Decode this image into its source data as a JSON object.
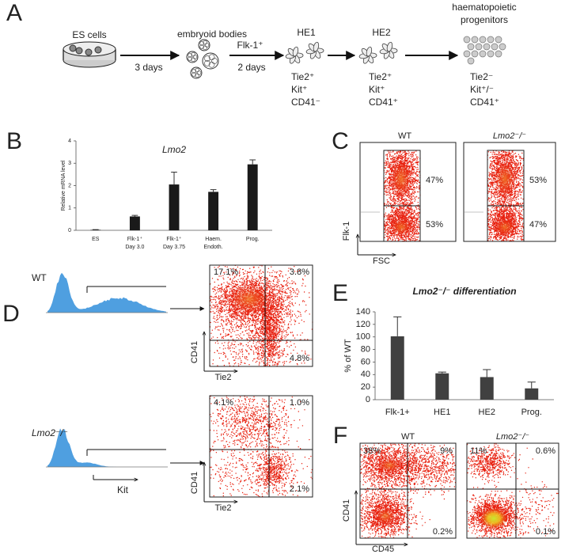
{
  "panel_labels": [
    "A",
    "B",
    "C",
    "D",
    "E",
    "F"
  ],
  "panel_a": {
    "es_cells": "ES cells",
    "arrow1": "3 days",
    "embryoid_bodies": "embryoid bodies",
    "arrow2_top": "Flk-1⁺",
    "arrow2_bottom": "2 days",
    "he1": {
      "label": "HE1",
      "markers": [
        "Tie2⁺",
        "Kit⁺",
        "CD41⁻"
      ]
    },
    "he2": {
      "label": "HE2",
      "markers": [
        "Tie2⁺",
        "Kit⁺",
        "CD41⁺"
      ]
    },
    "progenitors": {
      "label": [
        "haematopoietic",
        "progenitors"
      ],
      "markers": [
        "Tie2⁻",
        "Kit⁺/⁻",
        "CD41⁺"
      ]
    }
  },
  "chart_data": [
    {
      "type": "bar",
      "title": "Lmo2",
      "y_label": "Relative mRNA level",
      "categories": [
        [
          "ES"
        ],
        [
          "Flk-1⁺",
          "Day 3.0"
        ],
        [
          "Flk-1⁺",
          "Day 3.75"
        ],
        [
          "Haem.",
          "Endoth."
        ],
        [
          "Prog."
        ]
      ],
      "values": [
        0.02,
        0.62,
        2.05,
        1.72,
        2.95
      ],
      "errors": [
        0.01,
        0.05,
        0.55,
        0.1,
        0.2
      ],
      "color": "#1a1a1a",
      "ylim": [
        0,
        4
      ],
      "yticks": [
        0,
        1,
        2,
        3,
        4
      ],
      "grid": false
    },
    {
      "type": "bar",
      "title": "Lmo2⁻/⁻ differentiation",
      "y_label": "% of WT",
      "categories": [
        [
          "Flk-1+"
        ],
        [
          "HE1"
        ],
        [
          "HE2"
        ],
        [
          "Prog."
        ]
      ],
      "values": [
        101,
        42,
        36,
        18
      ],
      "errors": [
        31,
        2,
        12,
        10
      ],
      "color": "#404040",
      "ylim": [
        0,
        140
      ],
      "yticks": [
        0,
        20,
        40,
        60,
        80,
        100,
        120,
        140
      ],
      "grid": false
    }
  ],
  "panel_c": {
    "plots": [
      {
        "title": "WT",
        "upper": "47%",
        "lower": "53%"
      },
      {
        "title": "Lmo2⁻/⁻",
        "upper": "53%",
        "lower": "47%"
      }
    ],
    "y_label": "Flk-1",
    "x_label": "FSC"
  },
  "panel_d": {
    "rows": [
      {
        "name": "WT",
        "upper_left": "17.1%",
        "upper_right": "3.8%",
        "lower_right": "4.8%"
      },
      {
        "name": "Lmo2⁻/⁻",
        "upper_left": "4.1%",
        "upper_right": "1.0%",
        "lower_right": "2.1%"
      }
    ],
    "hist_label": "Kit",
    "y_label": "CD41",
    "x_label": "Tie2"
  },
  "panel_f": {
    "plots": [
      {
        "title": "WT",
        "upper_left": "38%",
        "upper_right": "9%",
        "lower_right": "0.2%"
      },
      {
        "title": "Lmo2⁻/⁻",
        "upper_left": "11%",
        "upper_right": "0.6%",
        "lower_right": "0.1%"
      }
    ],
    "y_label": "CD41",
    "x_label": "CD45"
  }
}
